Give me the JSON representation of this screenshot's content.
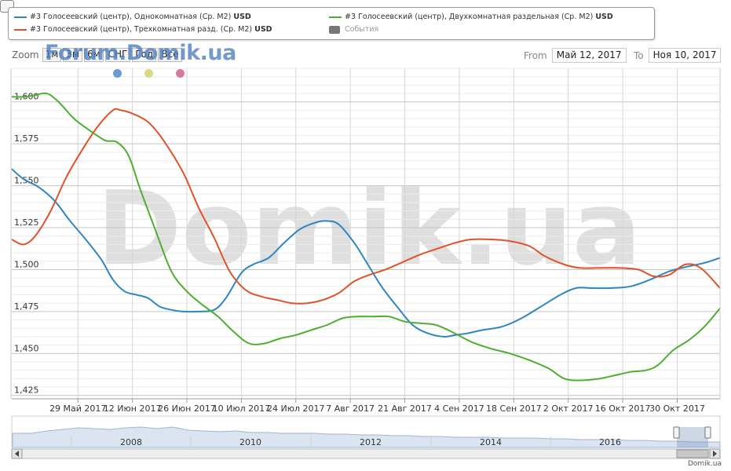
{
  "legend": {
    "items": [
      {
        "label": "#3 Голосеевский (центр), Однокомнатная (Ср. M2)",
        "unit": "USD",
        "color": "#2f86c2"
      },
      {
        "label": "#3 Голосеевский (центр), Трехкомнатная разд. (Ср. M2)",
        "unit": "USD",
        "color": "#e0532a"
      },
      {
        "label": "#3 Голосеевский (центр), Двухкомнатная раздельная (Ср. M2)",
        "unit": "USD",
        "color": "#4caf32"
      }
    ],
    "events_label": "События",
    "events_color": "#777777"
  },
  "zoom": {
    "label": "Zoom",
    "buttons": [
      "1м",
      "3м",
      "6м",
      "СНГ",
      "Год",
      "Все"
    ]
  },
  "watermark_small": "Forum.Domik.ua",
  "watermark_big": "Domik.ua",
  "dots": [
    "#6b9bd1",
    "#d8dc80",
    "#d57a9a"
  ],
  "range": {
    "from_label": "From",
    "from_value": "Май 12, 2017",
    "to_label": "To",
    "to_value": "Ноя 10, 2017"
  },
  "navigator": {
    "years": [
      "2008",
      "2010",
      "2012",
      "2014",
      "2016"
    ]
  },
  "footer": "Domik.ua",
  "chart_data": {
    "type": "line",
    "x_tick_labels": [
      "29 Май 2017",
      "12 Июн 2017",
      "26 Июн 2017",
      "10 Июл 2017",
      "24 Июл 2017",
      "7 Авг 2017",
      "21 Авг 2017",
      "4 Сен 2017",
      "18 Сен 2017",
      "2 Окт 2017",
      "16 Окт 2017",
      "30 Окт 2017"
    ],
    "y_ticks": [
      1425,
      1450,
      1475,
      1500,
      1525,
      1550,
      1575,
      1600
    ],
    "y_tick_labels": [
      "1,425",
      "1,450",
      "1,475",
      "1,500",
      "1,525",
      "1,550",
      "1,575",
      "1,600"
    ],
    "ylim": [
      1423,
      1620
    ],
    "xlim_days": [
      0,
      182
    ],
    "x_range": [
      "2017-05-12",
      "2017-11-10"
    ],
    "series": [
      {
        "name": "#3 Голосеевский (центр), Однокомнатная (Ср. M2) USD",
        "color": "#2f86c2",
        "x": [
          "2017-05-12",
          "2017-05-15",
          "2017-05-19",
          "2017-05-23",
          "2017-05-27",
          "2017-05-31",
          "2017-06-04",
          "2017-06-07",
          "2017-06-10",
          "2017-06-13",
          "2017-06-16",
          "2017-06-19",
          "2017-06-22",
          "2017-06-25",
          "2017-06-29",
          "2017-07-03",
          "2017-07-06",
          "2017-07-10",
          "2017-07-13",
          "2017-07-17",
          "2017-07-21",
          "2017-07-25",
          "2017-07-29",
          "2017-08-01",
          "2017-08-04",
          "2017-08-08",
          "2017-08-11",
          "2017-08-15",
          "2017-08-19",
          "2017-08-23",
          "2017-08-27",
          "2017-08-31",
          "2017-09-03",
          "2017-09-06",
          "2017-09-10",
          "2017-09-15",
          "2017-09-20",
          "2017-09-25",
          "2017-09-30",
          "2017-10-04",
          "2017-10-08",
          "2017-10-13",
          "2017-10-18",
          "2017-10-23",
          "2017-10-28",
          "2017-11-02",
          "2017-11-06",
          "2017-11-10"
        ],
        "y": [
          1560,
          1554,
          1549,
          1541,
          1529,
          1518,
          1506,
          1494,
          1487,
          1485,
          1483,
          1478,
          1476,
          1475,
          1475,
          1476,
          1483,
          1498,
          1503,
          1507,
          1516,
          1524,
          1528,
          1529,
          1527,
          1516,
          1505,
          1490,
          1478,
          1467,
          1462,
          1460,
          1461,
          1462,
          1464,
          1466,
          1471,
          1478,
          1485,
          1489,
          1489,
          1489,
          1490,
          1494,
          1499,
          1502,
          1504,
          1507
        ]
      },
      {
        "name": "#3 Голосеевский (центр), Трехкомнатная разд. (Ср. M2) USD",
        "color": "#e0532a",
        "x": [
          "2017-05-12",
          "2017-05-15",
          "2017-05-18",
          "2017-05-22",
          "2017-05-26",
          "2017-05-30",
          "2017-06-03",
          "2017-06-07",
          "2017-06-09",
          "2017-06-12",
          "2017-06-16",
          "2017-06-20",
          "2017-06-25",
          "2017-06-29",
          "2017-07-03",
          "2017-07-07",
          "2017-07-11",
          "2017-07-15",
          "2017-07-19",
          "2017-07-23",
          "2017-07-27",
          "2017-07-31",
          "2017-08-04",
          "2017-08-08",
          "2017-08-12",
          "2017-08-16",
          "2017-08-20",
          "2017-08-25",
          "2017-08-30",
          "2017-09-03",
          "2017-09-07",
          "2017-09-12",
          "2017-09-17",
          "2017-09-22",
          "2017-09-26",
          "2017-10-01",
          "2017-10-05",
          "2017-10-10",
          "2017-10-15",
          "2017-10-20",
          "2017-10-24",
          "2017-10-28",
          "2017-11-01",
          "2017-11-05",
          "2017-11-10"
        ],
        "y": [
          1518,
          1515,
          1520,
          1535,
          1555,
          1571,
          1585,
          1595,
          1595,
          1593,
          1588,
          1577,
          1558,
          1537,
          1519,
          1499,
          1488,
          1484,
          1482,
          1480,
          1480,
          1482,
          1486,
          1493,
          1497,
          1500,
          1504,
          1509,
          1513,
          1516,
          1518,
          1518,
          1517,
          1514,
          1508,
          1503,
          1501,
          1501,
          1501,
          1500,
          1496,
          1497,
          1503,
          1501,
          1489
        ]
      },
      {
        "name": "#3 Голосеевский (центр), Двухкомнатная раздельная (Ср. M2) USD",
        "color": "#4caf32",
        "x": [
          "2017-05-12",
          "2017-05-15",
          "2017-05-18",
          "2017-05-21",
          "2017-05-24",
          "2017-05-28",
          "2017-06-01",
          "2017-06-05",
          "2017-06-08",
          "2017-06-11",
          "2017-06-14",
          "2017-06-18",
          "2017-06-22",
          "2017-06-26",
          "2017-06-30",
          "2017-07-04",
          "2017-07-08",
          "2017-07-12",
          "2017-07-16",
          "2017-07-20",
          "2017-07-24",
          "2017-07-28",
          "2017-08-01",
          "2017-08-05",
          "2017-08-09",
          "2017-08-13",
          "2017-08-17",
          "2017-08-21",
          "2017-08-25",
          "2017-08-29",
          "2017-09-02",
          "2017-09-07",
          "2017-09-12",
          "2017-09-17",
          "2017-09-22",
          "2017-09-27",
          "2017-10-01",
          "2017-10-05",
          "2017-10-10",
          "2017-10-14",
          "2017-10-18",
          "2017-10-22",
          "2017-10-25",
          "2017-10-29",
          "2017-11-02",
          "2017-11-06",
          "2017-11-10"
        ],
        "y": [
          1603,
          1603,
          1604,
          1605,
          1600,
          1590,
          1583,
          1577,
          1576,
          1568,
          1548,
          1523,
          1499,
          1487,
          1479,
          1472,
          1463,
          1456,
          1456,
          1459,
          1461,
          1464,
          1467,
          1471,
          1472,
          1472,
          1472,
          1469,
          1468,
          1467,
          1463,
          1457,
          1453,
          1450,
          1446,
          1441,
          1435,
          1434,
          1435,
          1437,
          1439,
          1440,
          1443,
          1452,
          1458,
          1466,
          1477
        ]
      }
    ]
  }
}
